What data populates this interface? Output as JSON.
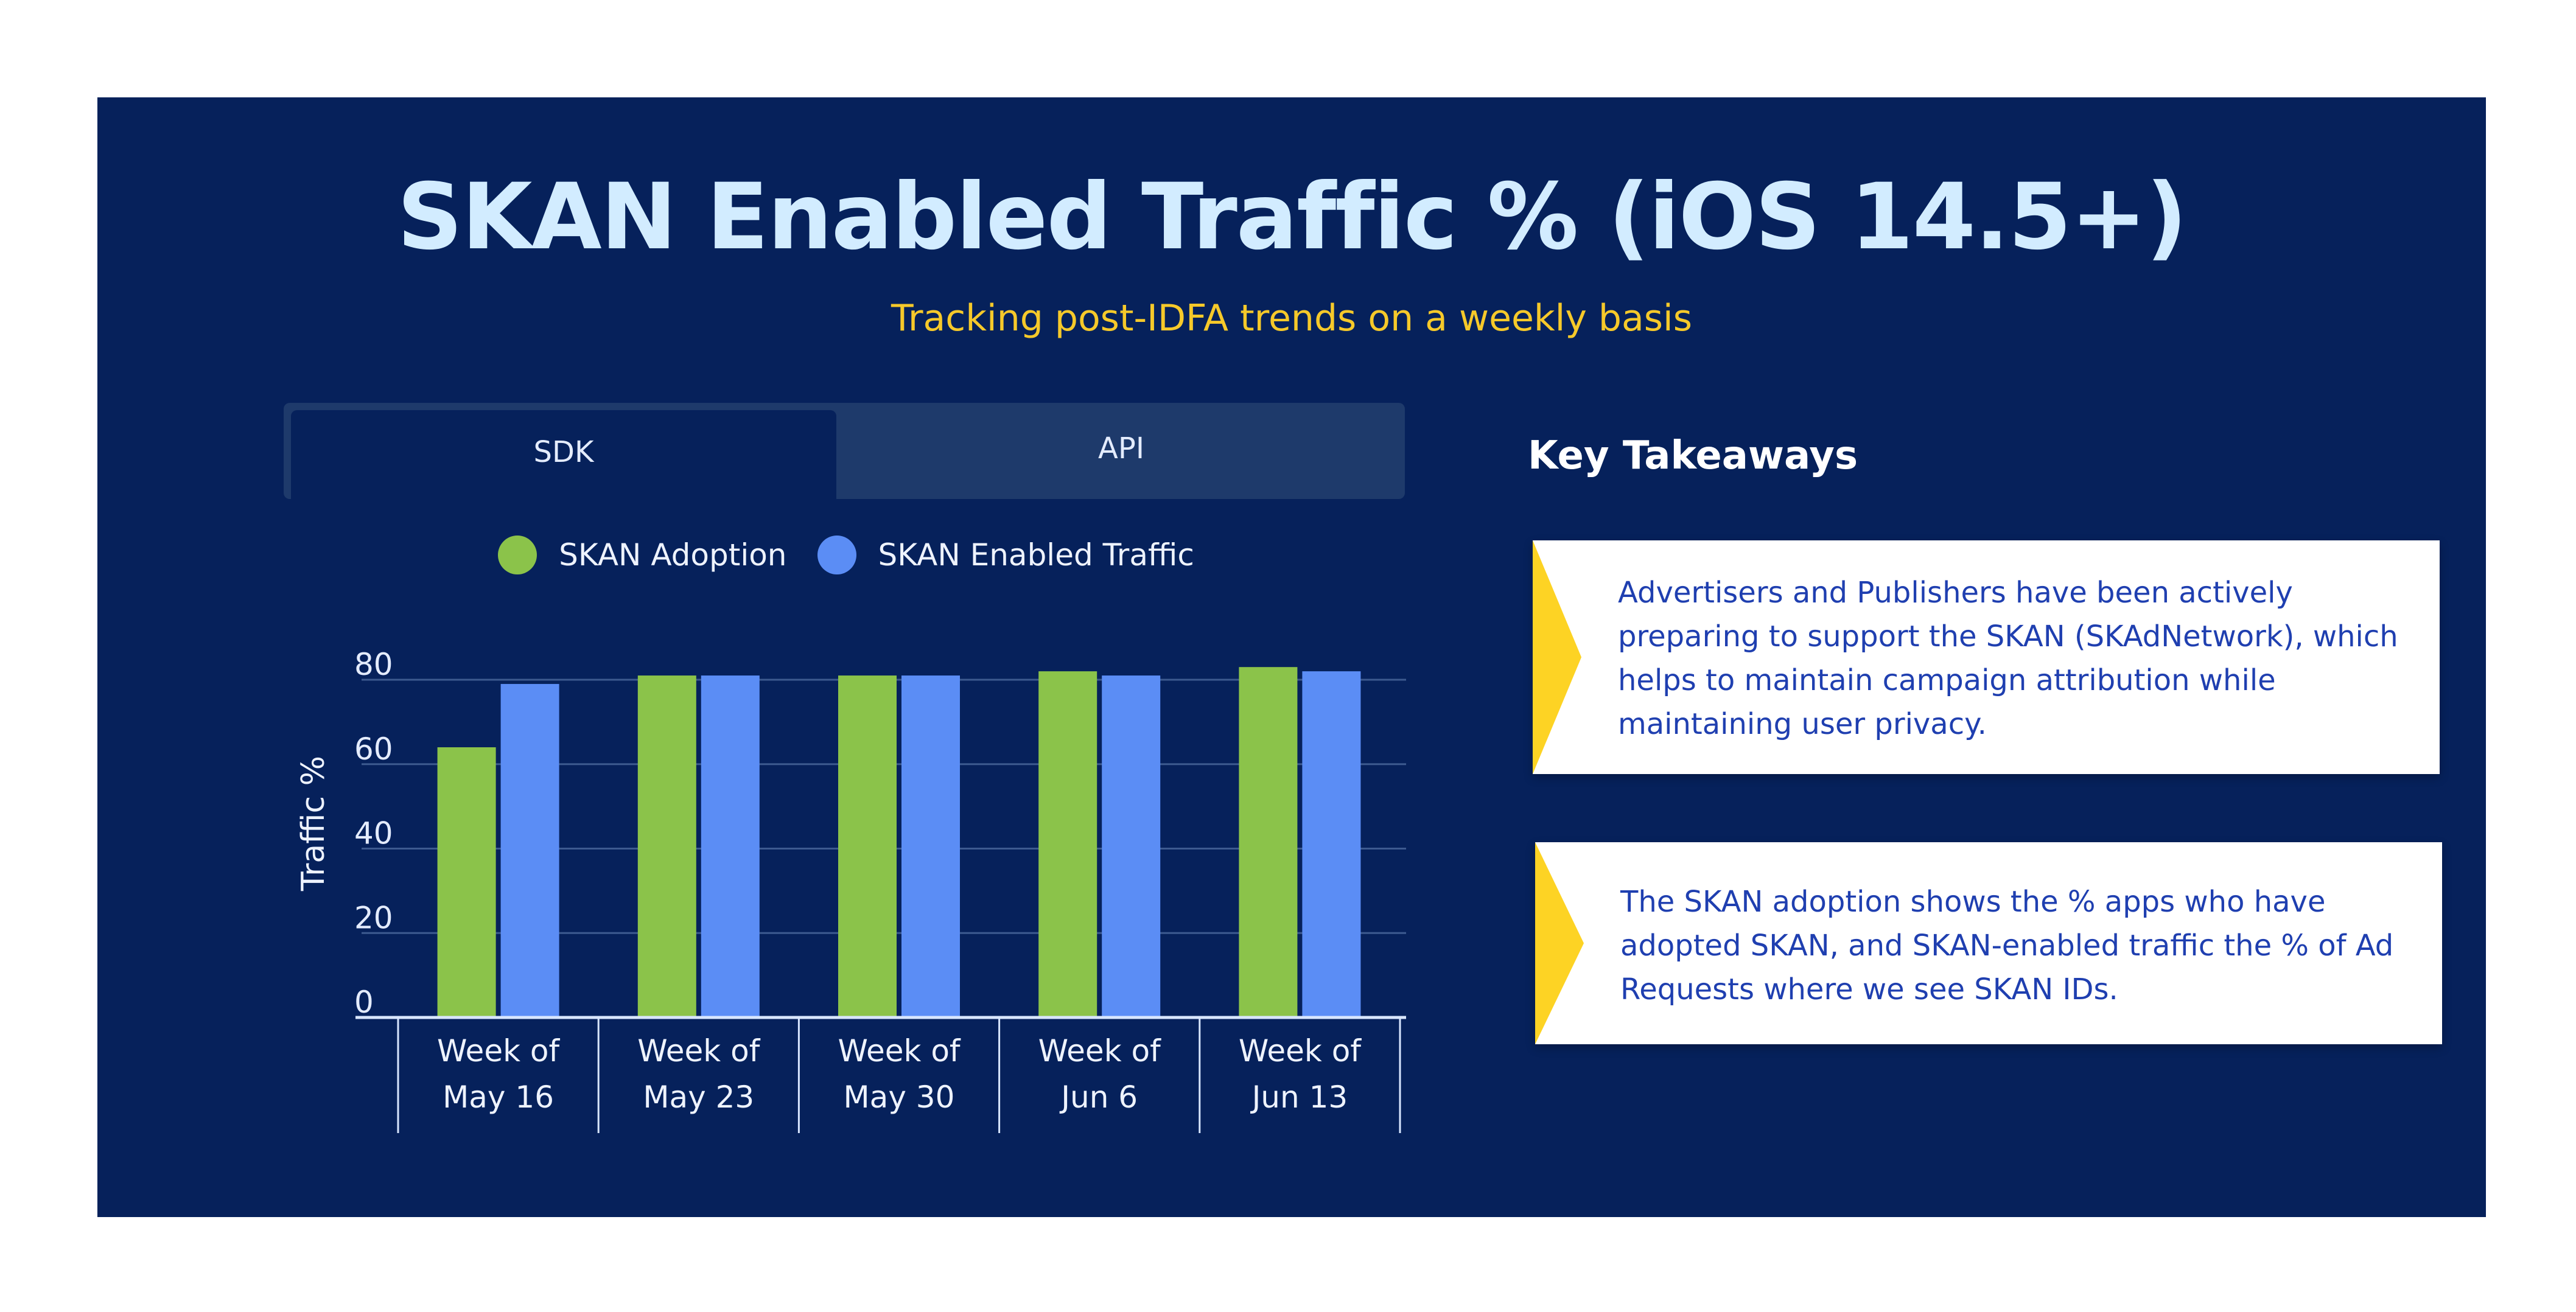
{
  "title": "SKAN Enabled Traffic % (iOS 14.5+)",
  "subtitle": "Tracking post-IDFA trends on a weekly basis",
  "tabs": [
    {
      "label": "SDK",
      "active": true
    },
    {
      "label": "API",
      "active": false
    }
  ],
  "key_takeaways": {
    "heading": "Key Takeaways",
    "items": [
      "Advertisers and Publishers have been actively preparing to support the SKAN (SKAdNetwork), which helps to maintain campaign attribution while maintaining user privacy.",
      "The SKAN adoption shows the % apps who have adopted SKAN, and SKAN-enabled traffic the % of Ad Requests where we see SKAN IDs."
    ]
  },
  "colors": {
    "background": "#06215b",
    "title": "#d2ecff",
    "subtitle": "#f6c92a",
    "adoption": "#8bc34a",
    "traffic": "#5b8df5",
    "card_arrow": "#fdd324",
    "card_text": "#1f3fb0"
  },
  "chart_data": {
    "type": "bar",
    "categories": [
      [
        "Week of",
        "May 16"
      ],
      [
        "Week of",
        "May 23"
      ],
      [
        "Week of",
        "May 30"
      ],
      [
        "Week of",
        "Jun 6"
      ],
      [
        "Week of",
        "Jun 13"
      ]
    ],
    "series": [
      {
        "name": "SKAN Adoption",
        "color": "#8bc34a",
        "values": [
          64,
          81,
          81,
          82,
          83
        ]
      },
      {
        "name": "SKAN Enabled Traffic",
        "color": "#5b8df5",
        "values": [
          79,
          81,
          81,
          81,
          82
        ]
      }
    ],
    "ylabel": "Traffic %",
    "xlabel": "",
    "yticks": [
      0,
      20,
      40,
      60,
      80
    ],
    "ylim": [
      0,
      80
    ],
    "grid": true,
    "legend": "top-center"
  }
}
